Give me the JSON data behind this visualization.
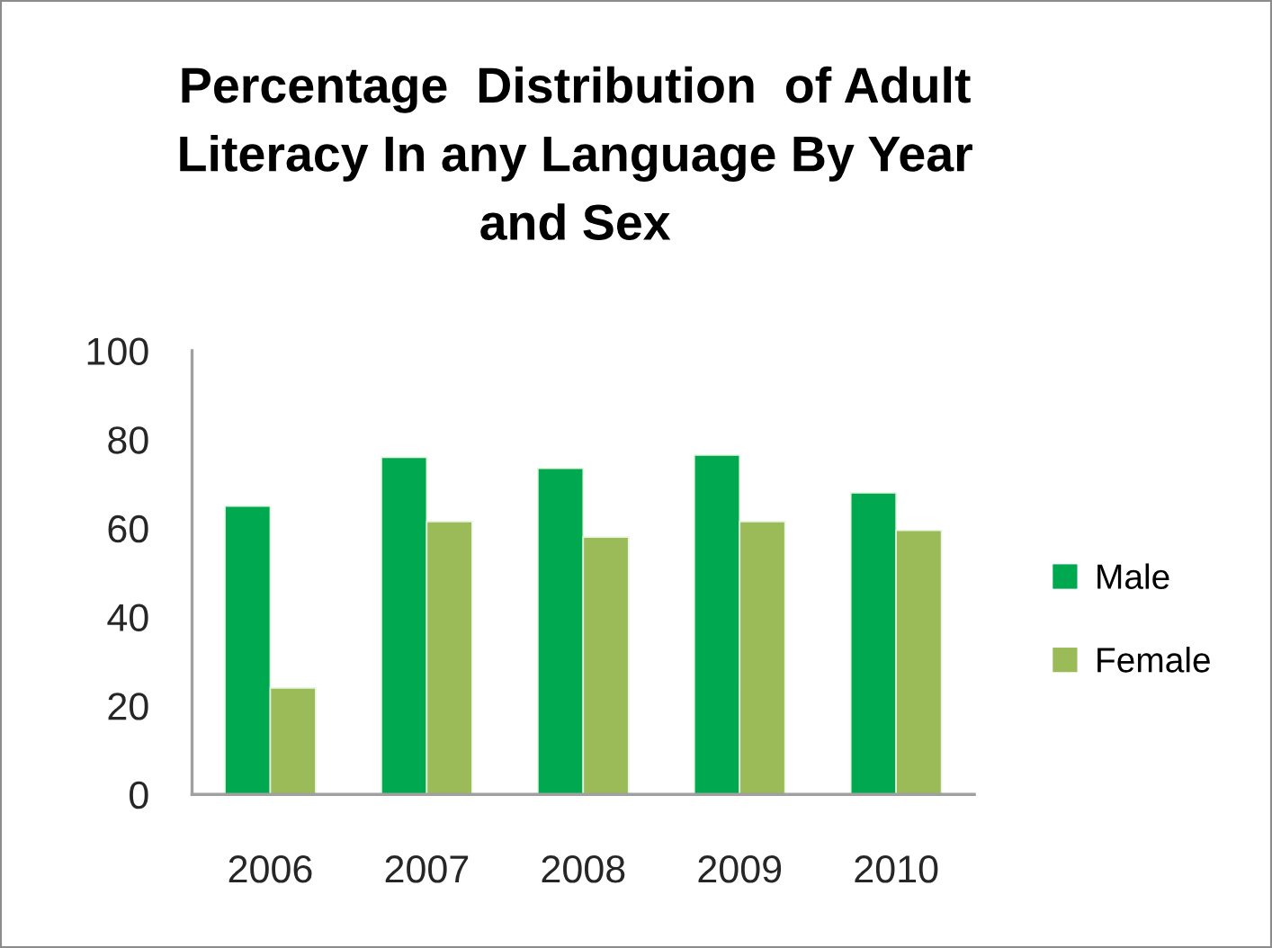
{
  "chart_data": {
    "type": "bar",
    "title": "Percentage  Distribution  of Adult\nLiteracy In any Language By Year\nand Sex",
    "categories": [
      "2006",
      "2007",
      "2008",
      "2009",
      "2010"
    ],
    "series": [
      {
        "name": "Male",
        "color": "#00a84f",
        "values": [
          65,
          76,
          73.5,
          76.5,
          68
        ]
      },
      {
        "name": "Female",
        "color": "#9bbb59",
        "values": [
          24,
          61.5,
          58,
          61.5,
          59.5
        ]
      }
    ],
    "ylim": [
      0,
      100
    ],
    "yticks": [
      0,
      20,
      40,
      60,
      80,
      100
    ],
    "grid": false,
    "legend": "right"
  }
}
